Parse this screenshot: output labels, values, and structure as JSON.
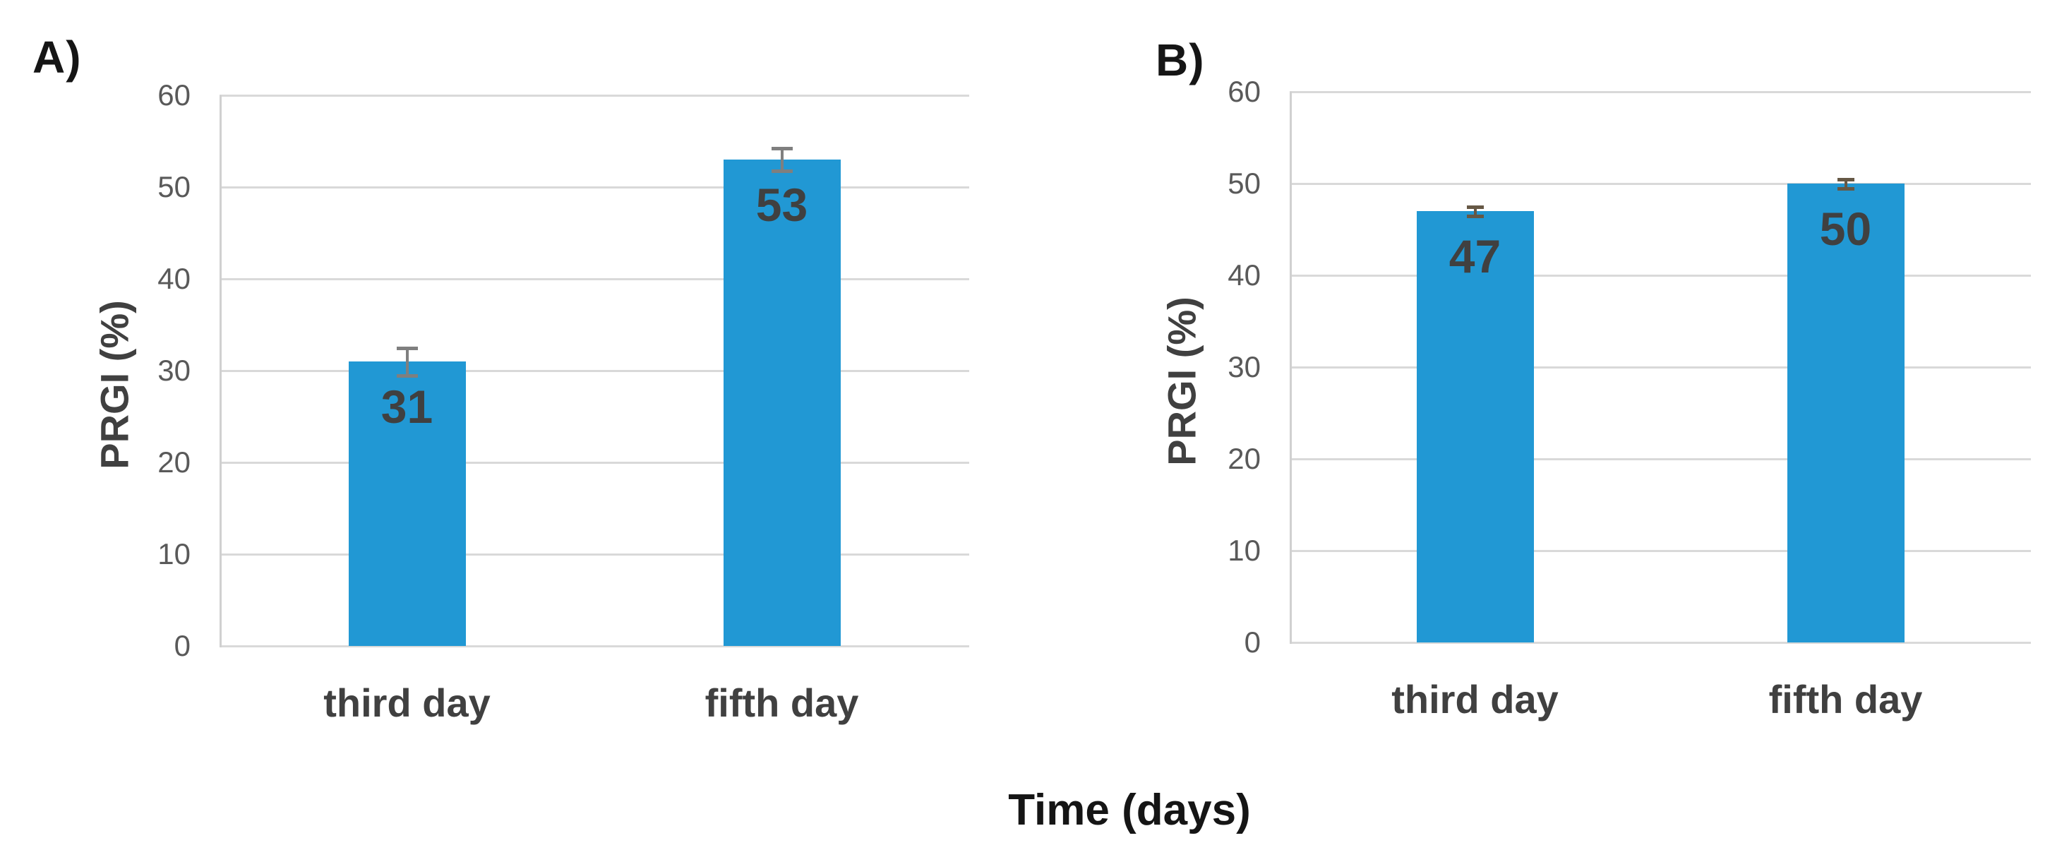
{
  "figure": {
    "shared_xlabel": "Time (days)"
  },
  "chart_data": [
    {
      "id": "A",
      "type": "bar",
      "panel_label": "A)",
      "title": "",
      "xlabel": "Time (days)",
      "ylabel": "PRGI (%)",
      "categories": [
        "third day",
        "fifth day"
      ],
      "values": [
        31,
        53
      ],
      "errors": [
        1.5,
        1.2
      ],
      "bar_value_labels": [
        "31",
        "53"
      ],
      "ylim": [
        0,
        60
      ],
      "yticks": [
        0,
        10,
        20,
        30,
        40,
        50,
        60
      ],
      "grid": true,
      "legend": "none"
    },
    {
      "id": "B",
      "type": "bar",
      "panel_label": "B)",
      "title": "",
      "xlabel": "Time (days)",
      "ylabel": "PRGI (%)",
      "categories": [
        "third day",
        "fifth day"
      ],
      "values": [
        47,
        50
      ],
      "errors": [
        0.5,
        0.5
      ],
      "bar_value_labels": [
        "47",
        "50"
      ],
      "ylim": [
        0,
        60
      ],
      "yticks": [
        0,
        10,
        20,
        30,
        40,
        50,
        60
      ],
      "grid": true,
      "legend": "none"
    }
  ],
  "colors": {
    "bar": "#2198d4",
    "grid": "#d9d9d9",
    "axis": "#d0d0d0",
    "tick_text": "#595959",
    "label_text": "#404040",
    "title_text": "#151515",
    "error_bar_a": "#7f7f7f",
    "error_bar_b": "#665845"
  }
}
